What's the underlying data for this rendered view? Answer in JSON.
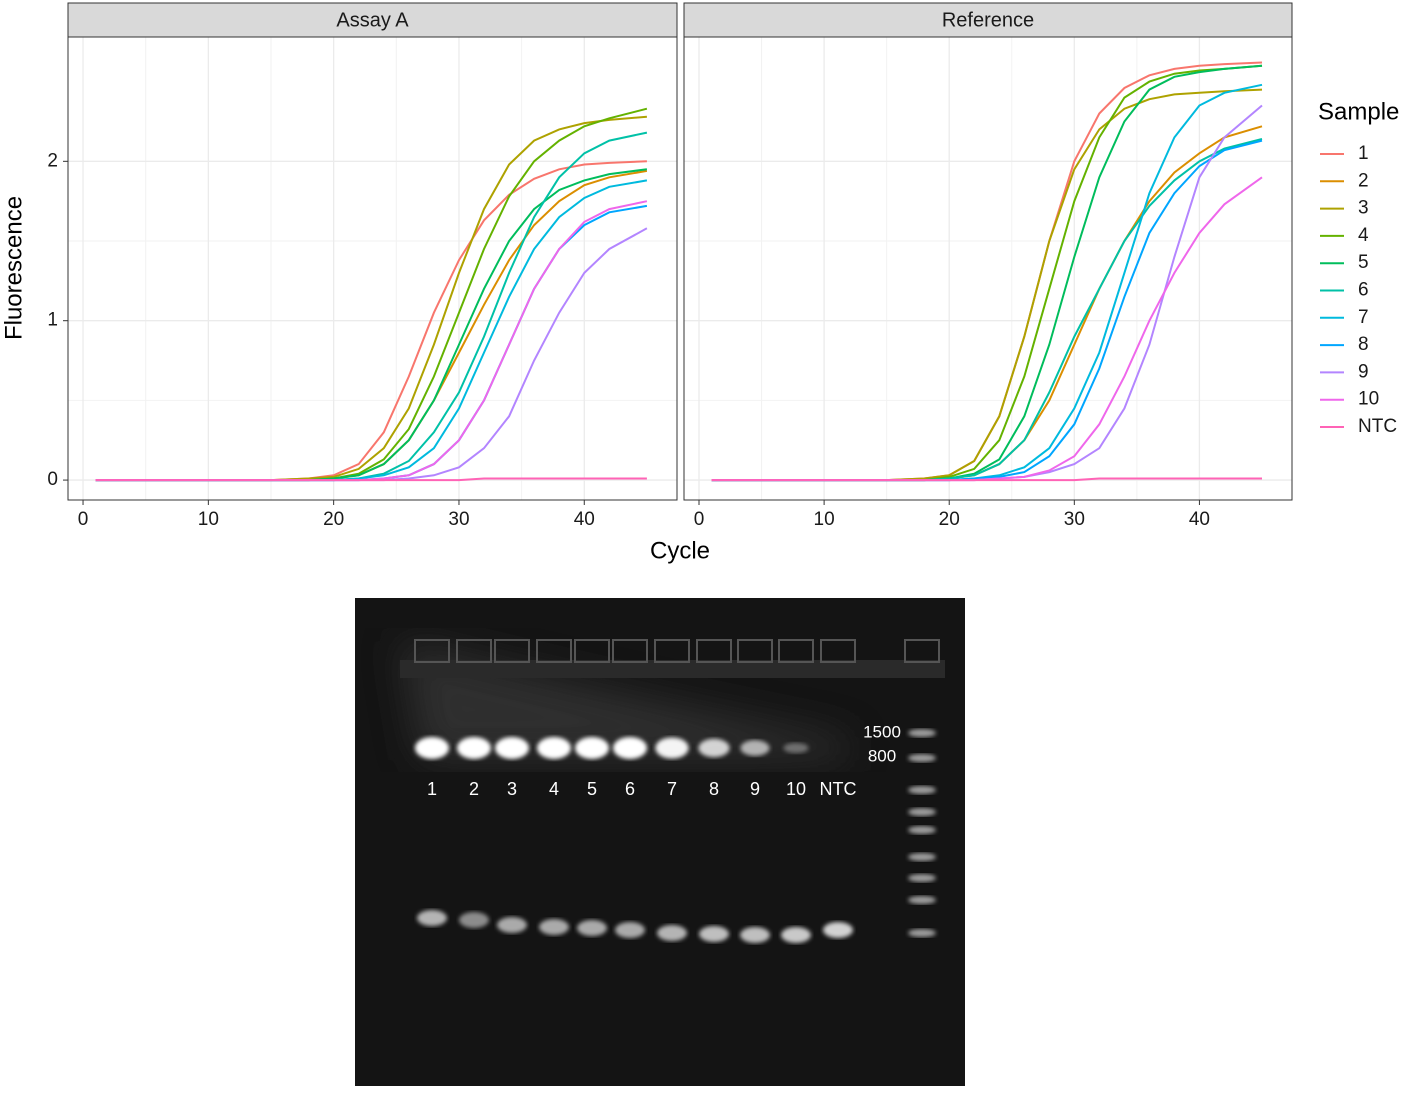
{
  "chart_data": {
    "type": "line",
    "facets": [
      "Assay A",
      "Reference"
    ],
    "x_label": "Cycle",
    "y_label": "Fluorescence",
    "legend_title": "Sample",
    "x": [
      1,
      15,
      18,
      20,
      22,
      24,
      26,
      28,
      30,
      32,
      34,
      36,
      38,
      40,
      42,
      45
    ],
    "xlim": [
      -1.2,
      47.4
    ],
    "xticks": [
      0,
      10,
      20,
      30,
      40
    ],
    "ylim": [
      -0.125,
      2.78
    ],
    "yticks": [
      0,
      1,
      2
    ],
    "grid": true,
    "series": [
      {
        "name": "1",
        "color": "#F8766D",
        "values": [
          [
            0,
            0,
            0.01,
            0.03,
            0.1,
            0.3,
            0.65,
            1.05,
            1.38,
            1.63,
            1.79,
            1.89,
            1.95,
            1.98,
            1.99,
            2.0
          ],
          [
            0,
            0,
            0.01,
            0.03,
            0.12,
            0.4,
            0.9,
            1.5,
            2.0,
            2.3,
            2.46,
            2.54,
            2.58,
            2.6,
            2.61,
            2.62
          ]
        ]
      },
      {
        "name": "2",
        "color": "#DB8E00",
        "values": [
          [
            0,
            0,
            0,
            0.01,
            0.03,
            0.1,
            0.25,
            0.5,
            0.8,
            1.1,
            1.38,
            1.6,
            1.75,
            1.85,
            1.9,
            1.94
          ],
          [
            0,
            0,
            0,
            0.01,
            0.03,
            0.1,
            0.25,
            0.5,
            0.85,
            1.2,
            1.5,
            1.75,
            1.93,
            2.05,
            2.15,
            2.22
          ]
        ]
      },
      {
        "name": "3",
        "color": "#AEA200",
        "values": [
          [
            0,
            0,
            0.01,
            0.02,
            0.07,
            0.2,
            0.45,
            0.85,
            1.3,
            1.7,
            1.98,
            2.13,
            2.2,
            2.24,
            2.26,
            2.28
          ],
          [
            0,
            0,
            0.01,
            0.03,
            0.12,
            0.4,
            0.9,
            1.5,
            1.95,
            2.2,
            2.33,
            2.39,
            2.42,
            2.43,
            2.44,
            2.45
          ]
        ]
      },
      {
        "name": "4",
        "color": "#64B200",
        "values": [
          [
            0,
            0,
            0,
            0.01,
            0.04,
            0.13,
            0.32,
            0.65,
            1.05,
            1.45,
            1.78,
            2.0,
            2.13,
            2.22,
            2.27,
            2.33
          ],
          [
            0,
            0,
            0,
            0.02,
            0.07,
            0.25,
            0.65,
            1.2,
            1.75,
            2.15,
            2.4,
            2.5,
            2.55,
            2.57,
            2.58,
            2.6
          ]
        ]
      },
      {
        "name": "5",
        "color": "#00BD5C",
        "values": [
          [
            0,
            0,
            0,
            0.01,
            0.03,
            0.1,
            0.25,
            0.5,
            0.85,
            1.2,
            1.5,
            1.7,
            1.82,
            1.88,
            1.92,
            1.95
          ],
          [
            0,
            0,
            0,
            0.01,
            0.04,
            0.13,
            0.4,
            0.85,
            1.4,
            1.9,
            2.25,
            2.45,
            2.53,
            2.56,
            2.58,
            2.6
          ]
        ]
      },
      {
        "name": "6",
        "color": "#00C1A7",
        "values": [
          [
            0,
            0,
            0,
            0,
            0.01,
            0.04,
            0.12,
            0.3,
            0.55,
            0.9,
            1.3,
            1.65,
            1.9,
            2.05,
            2.13,
            2.18
          ],
          [
            0,
            0,
            0,
            0.01,
            0.03,
            0.1,
            0.25,
            0.55,
            0.9,
            1.2,
            1.5,
            1.72,
            1.88,
            2.0,
            2.08,
            2.14
          ]
        ]
      },
      {
        "name": "7",
        "color": "#00BADE",
        "values": [
          [
            0,
            0,
            0,
            0,
            0.01,
            0.03,
            0.08,
            0.2,
            0.45,
            0.8,
            1.15,
            1.45,
            1.65,
            1.77,
            1.84,
            1.88
          ],
          [
            0,
            0,
            0,
            0,
            0.01,
            0.03,
            0.08,
            0.2,
            0.45,
            0.8,
            1.3,
            1.8,
            2.15,
            2.35,
            2.43,
            2.48
          ]
        ]
      },
      {
        "name": "8",
        "color": "#00A6FF",
        "values": [
          [
            0,
            0,
            0,
            0,
            0,
            0.01,
            0.03,
            0.1,
            0.25,
            0.5,
            0.85,
            1.2,
            1.45,
            1.6,
            1.68,
            1.72
          ],
          [
            0,
            0,
            0,
            0,
            0.01,
            0.02,
            0.05,
            0.15,
            0.35,
            0.7,
            1.15,
            1.55,
            1.8,
            1.97,
            2.07,
            2.13
          ]
        ]
      },
      {
        "name": "9",
        "color": "#B385FF",
        "values": [
          [
            0,
            0,
            0,
            0,
            0,
            0,
            0.01,
            0.03,
            0.08,
            0.2,
            0.4,
            0.75,
            1.05,
            1.3,
            1.45,
            1.58
          ],
          [
            0,
            0,
            0,
            0,
            0,
            0.01,
            0.02,
            0.05,
            0.1,
            0.2,
            0.45,
            0.85,
            1.4,
            1.9,
            2.15,
            2.35
          ]
        ]
      },
      {
        "name": "10",
        "color": "#EF67EB",
        "values": [
          [
            0,
            0,
            0,
            0,
            0,
            0.01,
            0.03,
            0.1,
            0.25,
            0.5,
            0.85,
            1.2,
            1.45,
            1.62,
            1.7,
            1.75
          ],
          [
            0,
            0,
            0,
            0,
            0,
            0.01,
            0.02,
            0.06,
            0.15,
            0.35,
            0.65,
            1.0,
            1.3,
            1.55,
            1.73,
            1.9
          ]
        ]
      },
      {
        "name": "NTC",
        "color": "#FF63B6",
        "values": [
          [
            0,
            0,
            0,
            0,
            0,
            0,
            0,
            0,
            0,
            0.01,
            0.01,
            0.01,
            0.01,
            0.01,
            0.01,
            0.01
          ],
          [
            0,
            0,
            0,
            0,
            0,
            0,
            0,
            0,
            0,
            0.01,
            0.01,
            0.01,
            0.01,
            0.01,
            0.01,
            0.01
          ]
        ]
      }
    ]
  },
  "gel": {
    "lane_labels": [
      "1",
      "2",
      "3",
      "4",
      "5",
      "6",
      "7",
      "8",
      "9",
      "10",
      "NTC"
    ],
    "ladder_labels": [
      "1500",
      "800"
    ]
  }
}
